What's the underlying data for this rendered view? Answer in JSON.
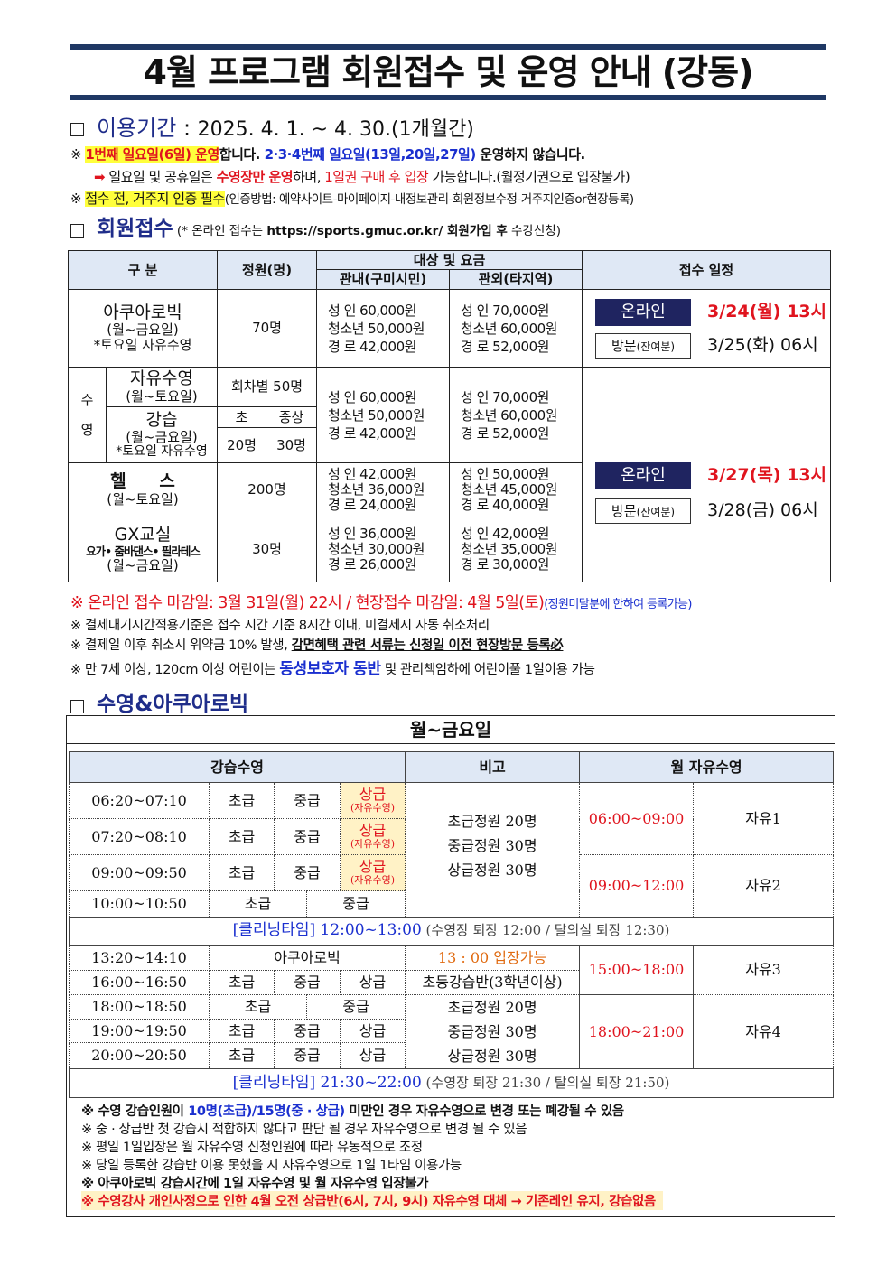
{
  "title": "4월 프로그램 회원접수 및 운영 안내 (강동)",
  "period": {
    "label": "이용기간",
    "sep": " : ",
    "value": "2025. 4. 1. ~ 4. 30.(1개월간)"
  },
  "notice1": {
    "mark": "※ ",
    "a": "1번째 일요일(6일) 운영",
    "b": "합니다. ",
    "c": "2·3·4번째 일요일(13일,20일,27일)",
    "d": " 운영하지 않습니다."
  },
  "notice2": {
    "arrow": "➡",
    "a": " 일요일 및 공휴일은 ",
    "b": "수영장만 운영",
    "c": "하며, ",
    "d": "1일권 구매 후 입장",
    "e": " 가능합니다.(월정기권으로 입장불가)"
  },
  "notice3": {
    "mark": "※ ",
    "a": "접수 전, 거주지 인증 필수",
    "b": "(인증방법: 예약사이트-마이페이지-내정보관리-회원정보수정-거주지인증or현장등록)"
  },
  "signup": {
    "label": "회원접수",
    "a": " (* 온라인 접수는 ",
    "url": "https://sports.gmuc.or.kr/",
    "b": " 회원가입 후",
    "c": " 수강신청)"
  },
  "table1": {
    "headers": {
      "category": "구 분",
      "capacity": "정원(명)",
      "fee": "대상 및 요금",
      "resident": "관내(구미시민)",
      "nonresident": "관외(타지역)",
      "schedule": "접수 일정"
    },
    "aqua": {
      "name": "아쿠아로빅",
      "days": "(월~금요일)",
      "note": "*토요일 자유수영",
      "cap": "70명",
      "res": [
        "성 인 60,000원",
        "청소년 50,000원",
        "경 로 42,000원"
      ],
      "non": [
        "성 인 70,000원",
        "청소년 60,000원",
        "경 로 52,000원"
      ]
    },
    "swim": {
      "label1": "수",
      "label2": "영",
      "free": "자유수영",
      "free_days": "(월~토요일)",
      "free_cap": "회차별 50명",
      "lesson": "강습",
      "lesson_days": "(월~금요일)",
      "lesson_note": "*토요일 자유수영",
      "beg": "초",
      "midadv": "중상",
      "beg_cap": "20명",
      "midadv_cap": "30명",
      "res": [
        "성 인 60,000원",
        "청소년 50,000원",
        "경 로 42,000원"
      ],
      "non": [
        "성 인 70,000원",
        "청소년 60,000원",
        "경 로 52,000원"
      ]
    },
    "health": {
      "name": "헬 스",
      "days": "(월~토요일)",
      "cap": "200명",
      "res": [
        "성 인 42,000원",
        "청소년 36,000원",
        "경 로 24,000원"
      ],
      "non": [
        "성 인 50,000원",
        "청소년 45,000원",
        "경 로 40,000원"
      ]
    },
    "gx": {
      "name": "GX교실",
      "sub": "요가• 줌바댄스• 필라테스",
      "days": "(월~금요일)",
      "cap": "30명",
      "res": [
        "성 인 36,000원",
        "청소년 30,000원",
        "경 로 26,000원"
      ],
      "non": [
        "성 인 42,000원",
        "청소년 35,000원",
        "경 로 30,000원"
      ]
    },
    "schedule1": {
      "online": "온라인",
      "online_date": "3/24(월) 13시",
      "visit": "방문",
      "visit_sub": "(잔여분)",
      "visit_date": "3/25(화) 06시"
    },
    "schedule2": {
      "online": "온라인",
      "online_date": "3/27(목) 13시",
      "visit": "방문",
      "visit_sub": "(잔여분)",
      "visit_date": "3/28(금) 06시"
    }
  },
  "notes1": {
    "deadline": "※ 온라인 접수 마감일: 3월 31일(월) 22시 / 현장접수 마감일: 4월 5일(토)",
    "deadline_sub": "(정원미달분에 한하여 등록가능)",
    "n2": "※ 결제대기시간적용기준은 접수 시간 기준 8시간 이내, 미결제시 자동 취소처리",
    "n3a": "※ 결제일 이후 취소시 위약금 10% 발생, ",
    "n3b": "감면혜택 관련 서류는 신청일 이전 현장방문 등록必",
    "n4a": "※ 만 7세 이상, 120cm 이상 어린이는 ",
    "n4b": "동성보호자 동반",
    "n4c": " 및 관리책임하에 어린이풀 1일이용 가능"
  },
  "swim_section": {
    "label": "수영&아쿠아로빅",
    "days": "월~금요일",
    "headers": {
      "lesson": "강습수영",
      "remark": "비고",
      "monthly": "월 자유수영"
    },
    "beg": "초급",
    "mid": "중급",
    "adv": "상급",
    "adv_sub": "(자유수영)",
    "morning": [
      "06:20~07:10",
      "07:20~08:10",
      "09:00~09:50",
      "10:00~10:50"
    ],
    "remark_lines": [
      "초급정원 20명",
      "중급정원 30명",
      "상급정원 30명"
    ],
    "free": [
      {
        "time": "06:00~09:00",
        "name": "자유1"
      },
      {
        "time": "09:00~12:00",
        "name": "자유2"
      },
      {
        "time": "15:00~18:00",
        "name": "자유3"
      },
      {
        "time": "18:00~21:00",
        "name": "자유4"
      }
    ],
    "cleaning1": {
      "a": "[클리닝타임] 12:00~13:00",
      "b": " (수영장 퇴장 12:00 / 탈의실 퇴장 12:30)"
    },
    "afternoon": [
      "13:20~14:10",
      "16:00~16:50",
      "18:00~18:50",
      "19:00~19:50",
      "20:00~20:50"
    ],
    "aqua": "아쿠아로빅",
    "aqua_remark": "13 : 00 입장가능",
    "kids": "초등강습반(3학년이상)",
    "cleaning2": {
      "a": "[클리닝타임] 21:30~22:00",
      "b": " (수영장 퇴장 21:30 / 탈의실 퇴장 21:50)"
    }
  },
  "notes2": {
    "n1a": "※ 수영 강습인원이 ",
    "n1b": "10명(초급)/15명(중 · 상급)",
    "n1c": " 미만인 경우 자유수영으로 변경 또는 폐강될 수 있음",
    "n2": "※ 중 · 상급반 첫 강습시 적합하지 않다고 판단 될 경우 자유수영으로 변경 될 수 있음",
    "n3": "※ 평일 1일입장은 월 자유수영 신청인원에 따라 유동적으로 조정",
    "n4": "※ 당일 등록한 강습반 이용 못했을 시 자유수영으로 1일 1타임 이용가능",
    "n5": "※ 아쿠아로빅 강습시간에 1일 자유수영 및 월 자유수영 입장불가",
    "n6": "※ 수영강사 개인사정으로 인한 4월 오전 상급반(6시, 7시, 9시) 자유수영 대체 → 기존레인 유지, 강습없음"
  },
  "colors": {
    "navy": "#1f2d8a",
    "red": "#e0141e",
    "blue": "#1a2fcf",
    "header_bg": "#dfe8f5",
    "highlight": "#ffff3c",
    "online_button": "#1f2460"
  }
}
